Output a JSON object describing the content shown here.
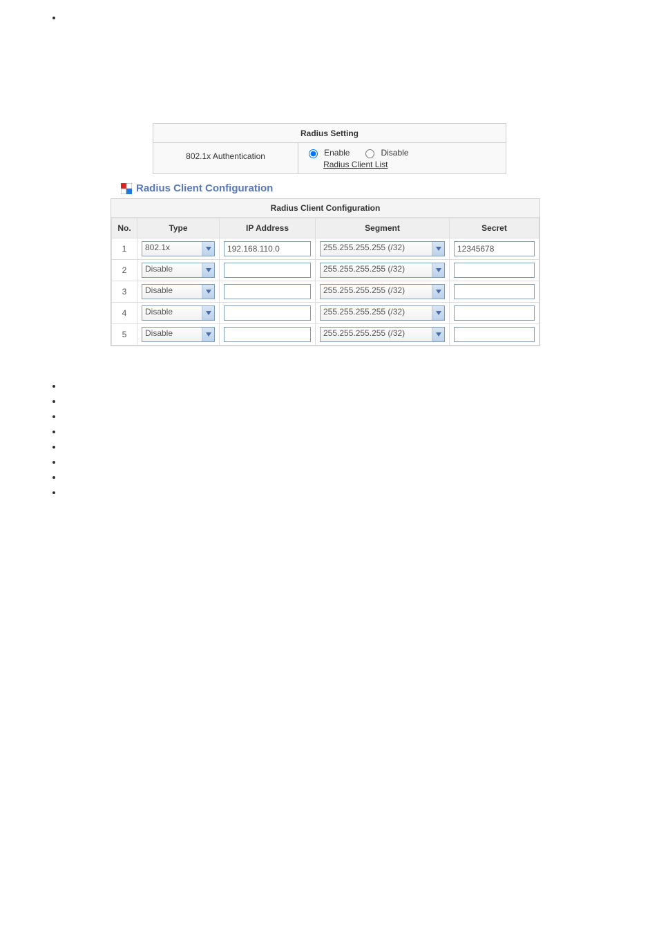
{
  "settings": {
    "title": "Radius Setting",
    "auth_label": "802.1x Authentication",
    "enable_label": "Enable",
    "disable_label": "Disable",
    "link_label": "Radius Client List",
    "auth_enabled": true
  },
  "client_conf": {
    "section_title": "Radius Client Configuration",
    "table_title": "Radius Client Configuration",
    "columns": {
      "no": "No.",
      "type": "Type",
      "ip": "IP Address",
      "segment": "Segment",
      "secret": "Secret"
    },
    "rows": [
      {
        "no": "1",
        "type": "802.1x",
        "ip": "192.168.110.0",
        "segment": "255.255.255.255 (/32)",
        "secret": "12345678"
      },
      {
        "no": "2",
        "type": "Disable",
        "ip": "",
        "segment": "255.255.255.255 (/32)",
        "secret": ""
      },
      {
        "no": "3",
        "type": "Disable",
        "ip": "",
        "segment": "255.255.255.255 (/32)",
        "secret": ""
      },
      {
        "no": "4",
        "type": "Disable",
        "ip": "",
        "segment": "255.255.255.255 (/32)",
        "secret": ""
      },
      {
        "no": "5",
        "type": "Disable",
        "ip": "",
        "segment": "255.255.255.255 (/32)",
        "secret": ""
      }
    ]
  },
  "colors": {
    "title_color": "#5878B8",
    "border": "#cccccc",
    "select_border": "#7e9db9",
    "dropdown_btn_top": "#d8e6f4",
    "dropdown_btn_bottom": "#bcd2ea",
    "chevron": "#4a6ea9",
    "icon_red": "#d22",
    "icon_blue": "#27d"
  }
}
